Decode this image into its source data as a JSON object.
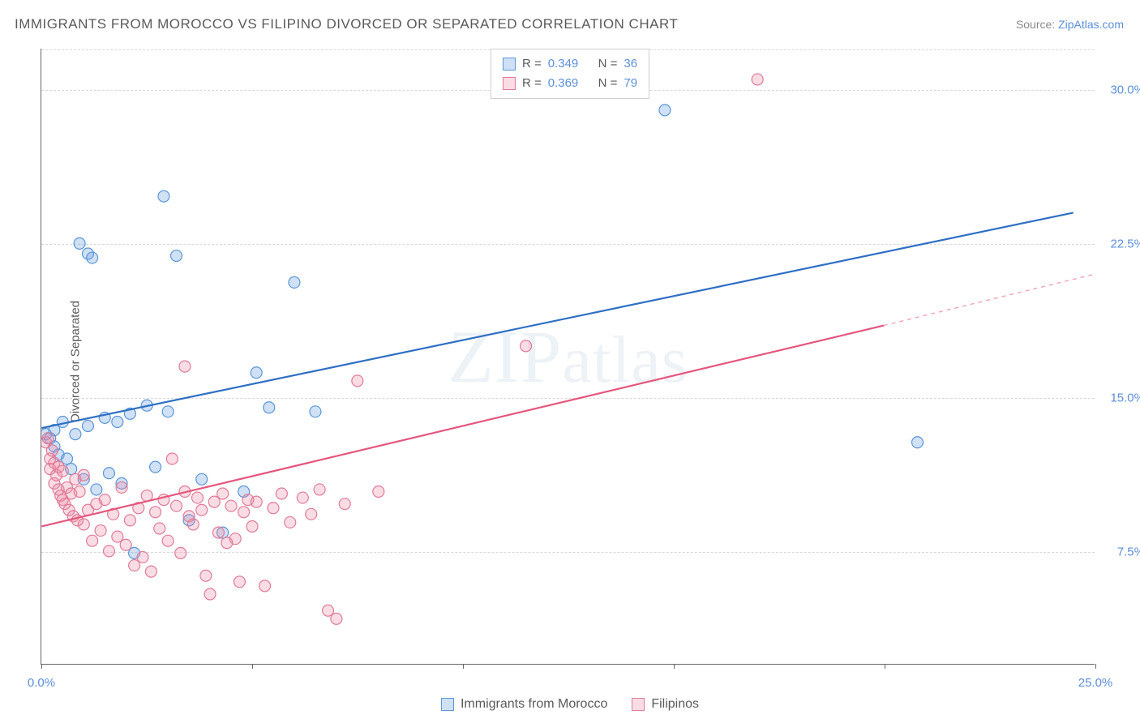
{
  "title": "IMMIGRANTS FROM MOROCCO VS FILIPINO DIVORCED OR SEPARATED CORRELATION CHART",
  "source_prefix": "Source: ",
  "source_link": "ZipAtlas.com",
  "ylabel": "Divorced or Separated",
  "watermark": "ZIPatlas",
  "chart": {
    "type": "scatter",
    "xlim": [
      0,
      25
    ],
    "ylim": [
      2,
      32
    ],
    "x_ticks": [
      0,
      5,
      10,
      15,
      20,
      25
    ],
    "x_tick_labels": {
      "0": "0.0%",
      "25": "25.0%"
    },
    "y_ticks": [
      7.5,
      15.0,
      22.5,
      30.0
    ],
    "y_tick_labels": [
      "7.5%",
      "15.0%",
      "22.5%",
      "30.0%"
    ],
    "background_color": "#ffffff",
    "grid_color": "#d8d8d8",
    "axis_color": "#666666",
    "marker_radius": 7,
    "marker_stroke_width": 1.2,
    "line_width": 2.2,
    "series": [
      {
        "name": "Immigrants from Morocco",
        "color_fill": "rgba(120,170,225,0.35)",
        "color_stroke": "#5b96d6",
        "line_color": "#2e6fc4",
        "trend_solid": {
          "x1": 0,
          "y1": 13.5,
          "x2": 24.5,
          "y2": 24.0
        },
        "points": [
          [
            0.1,
            13.2
          ],
          [
            0.2,
            13.0
          ],
          [
            0.3,
            12.6
          ],
          [
            0.3,
            13.4
          ],
          [
            0.4,
            12.2
          ],
          [
            0.5,
            13.8
          ],
          [
            0.6,
            12.0
          ],
          [
            0.7,
            11.5
          ],
          [
            0.8,
            13.2
          ],
          [
            0.9,
            22.5
          ],
          [
            1.0,
            11.0
          ],
          [
            1.1,
            13.6
          ],
          [
            1.1,
            22.0
          ],
          [
            1.2,
            21.8
          ],
          [
            1.3,
            10.5
          ],
          [
            1.5,
            14.0
          ],
          [
            1.6,
            11.3
          ],
          [
            1.8,
            13.8
          ],
          [
            1.9,
            10.8
          ],
          [
            2.1,
            14.2
          ],
          [
            2.2,
            7.4
          ],
          [
            2.5,
            14.6
          ],
          [
            2.7,
            11.6
          ],
          [
            2.9,
            24.8
          ],
          [
            3.0,
            14.3
          ],
          [
            3.2,
            21.9
          ],
          [
            3.5,
            9.0
          ],
          [
            3.8,
            11.0
          ],
          [
            4.3,
            8.4
          ],
          [
            4.8,
            10.4
          ],
          [
            5.1,
            16.2
          ],
          [
            5.4,
            14.5
          ],
          [
            6.0,
            20.6
          ],
          [
            6.5,
            14.3
          ],
          [
            14.8,
            29.0
          ],
          [
            20.8,
            12.8
          ]
        ]
      },
      {
        "name": "Filipinos",
        "color_fill": "rgba(235,140,165,0.30)",
        "color_stroke": "#e07b98",
        "line_color": "#e5567e",
        "trend_solid": {
          "x1": 0,
          "y1": 8.7,
          "x2": 20.0,
          "y2": 18.5
        },
        "trend_dashed": {
          "x1": 20.0,
          "y1": 18.5,
          "x2": 25.0,
          "y2": 21.0
        },
        "points": [
          [
            0.1,
            12.8
          ],
          [
            0.15,
            13.0
          ],
          [
            0.2,
            12.0
          ],
          [
            0.2,
            11.5
          ],
          [
            0.25,
            12.4
          ],
          [
            0.3,
            11.8
          ],
          [
            0.3,
            10.8
          ],
          [
            0.35,
            11.2
          ],
          [
            0.4,
            10.5
          ],
          [
            0.4,
            11.6
          ],
          [
            0.45,
            10.2
          ],
          [
            0.5,
            10.0
          ],
          [
            0.5,
            11.4
          ],
          [
            0.55,
            9.8
          ],
          [
            0.6,
            10.6
          ],
          [
            0.65,
            9.5
          ],
          [
            0.7,
            10.3
          ],
          [
            0.75,
            9.2
          ],
          [
            0.8,
            11.0
          ],
          [
            0.85,
            9.0
          ],
          [
            0.9,
            10.4
          ],
          [
            1.0,
            8.8
          ],
          [
            1.0,
            11.2
          ],
          [
            1.1,
            9.5
          ],
          [
            1.2,
            8.0
          ],
          [
            1.3,
            9.8
          ],
          [
            1.4,
            8.5
          ],
          [
            1.5,
            10.0
          ],
          [
            1.6,
            7.5
          ],
          [
            1.7,
            9.3
          ],
          [
            1.8,
            8.2
          ],
          [
            1.9,
            10.6
          ],
          [
            2.0,
            7.8
          ],
          [
            2.1,
            9.0
          ],
          [
            2.2,
            6.8
          ],
          [
            2.3,
            9.6
          ],
          [
            2.4,
            7.2
          ],
          [
            2.5,
            10.2
          ],
          [
            2.6,
            6.5
          ],
          [
            2.7,
            9.4
          ],
          [
            2.8,
            8.6
          ],
          [
            2.9,
            10.0
          ],
          [
            3.0,
            8.0
          ],
          [
            3.1,
            12.0
          ],
          [
            3.2,
            9.7
          ],
          [
            3.3,
            7.4
          ],
          [
            3.4,
            10.4
          ],
          [
            3.4,
            16.5
          ],
          [
            3.5,
            9.2
          ],
          [
            3.6,
            8.8
          ],
          [
            3.7,
            10.1
          ],
          [
            3.8,
            9.5
          ],
          [
            3.9,
            6.3
          ],
          [
            4.0,
            5.4
          ],
          [
            4.1,
            9.9
          ],
          [
            4.2,
            8.4
          ],
          [
            4.3,
            10.3
          ],
          [
            4.4,
            7.9
          ],
          [
            4.5,
            9.7
          ],
          [
            4.6,
            8.1
          ],
          [
            4.7,
            6.0
          ],
          [
            4.8,
            9.4
          ],
          [
            4.9,
            10.0
          ],
          [
            5.0,
            8.7
          ],
          [
            5.1,
            9.9
          ],
          [
            5.3,
            5.8
          ],
          [
            5.5,
            9.6
          ],
          [
            5.7,
            10.3
          ],
          [
            5.9,
            8.9
          ],
          [
            6.2,
            10.1
          ],
          [
            6.4,
            9.3
          ],
          [
            6.6,
            10.5
          ],
          [
            6.8,
            4.6
          ],
          [
            7.0,
            4.2
          ],
          [
            7.2,
            9.8
          ],
          [
            7.5,
            15.8
          ],
          [
            8.0,
            10.4
          ],
          [
            11.5,
            17.5
          ],
          [
            17.0,
            30.5
          ]
        ]
      }
    ]
  },
  "legend_top": [
    {
      "swatch_fill": "rgba(120,170,225,0.35)",
      "swatch_stroke": "#5b96d6",
      "r_label": "R =",
      "r_val": "0.349",
      "n_label": "N =",
      "n_val": "36"
    },
    {
      "swatch_fill": "rgba(235,140,165,0.30)",
      "swatch_stroke": "#e07b98",
      "r_label": "R =",
      "r_val": "0.369",
      "n_label": "N =",
      "n_val": "79"
    }
  ],
  "legend_bottom": [
    {
      "swatch_fill": "rgba(120,170,225,0.35)",
      "swatch_stroke": "#5b96d6",
      "label": "Immigrants from Morocco"
    },
    {
      "swatch_fill": "rgba(235,140,165,0.30)",
      "swatch_stroke": "#e07b98",
      "label": "Filipinos"
    }
  ]
}
